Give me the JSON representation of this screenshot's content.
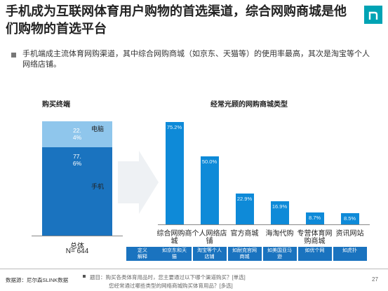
{
  "header": {
    "title": "手机成为互联网体育用户购物的首选渠道，综合网购商城是他们购物的首选平台"
  },
  "bullet": "手机端成主流体育网购渠道，其中综合网购商城（如京东、天猫等）的使用率最高，其次是淘宝等个人网络店铺。",
  "chart_data": [
    {
      "type": "stacked_bar",
      "title": "购买终端",
      "categories": [
        "总体"
      ],
      "sample_size": "N= 644",
      "series": [
        {
          "name": "手机",
          "color": "#1a73bf",
          "values": [
            77.6
          ],
          "value_labels": [
            "77.6%"
          ]
        },
        {
          "name": "电脑",
          "color": "#8fc6ec",
          "values": [
            22.4
          ],
          "value_labels": [
            "22.4%"
          ]
        }
      ],
      "ylim": [
        0,
        100
      ]
    },
    {
      "type": "bar",
      "title": "经常光顾的网购商城类型",
      "categories": [
        "综合网购商城",
        "个人网络店铺",
        "官方商城",
        "海淘代购",
        "专营体育网购商城",
        "资讯网站"
      ],
      "values": [
        75.2,
        50.0,
        22.9,
        16.9,
        8.7,
        8.5
      ],
      "value_labels": [
        "75.2%",
        "50.0%",
        "22.9%",
        "16.9%",
        "8.7%",
        "8.5%"
      ],
      "color": "#0e8ad8",
      "ylim": [
        0,
        80
      ],
      "definitions_label": "定义解释",
      "definitions": [
        "如京东和天猫",
        "淘宝等个人店铺",
        "如耐克官网商城",
        "如美国亚马逊",
        "如优个网",
        "如虎扑"
      ]
    }
  ],
  "footer": {
    "source": "数据源：尼尔森SLINK数据",
    "notes": [
      "题目：购买各类体育用品时，您主要通过以下哪个渠道购买？[单选]",
      "您经常通过哪些类型的网络商城购买体育用品？[多选]"
    ],
    "page": "27"
  }
}
